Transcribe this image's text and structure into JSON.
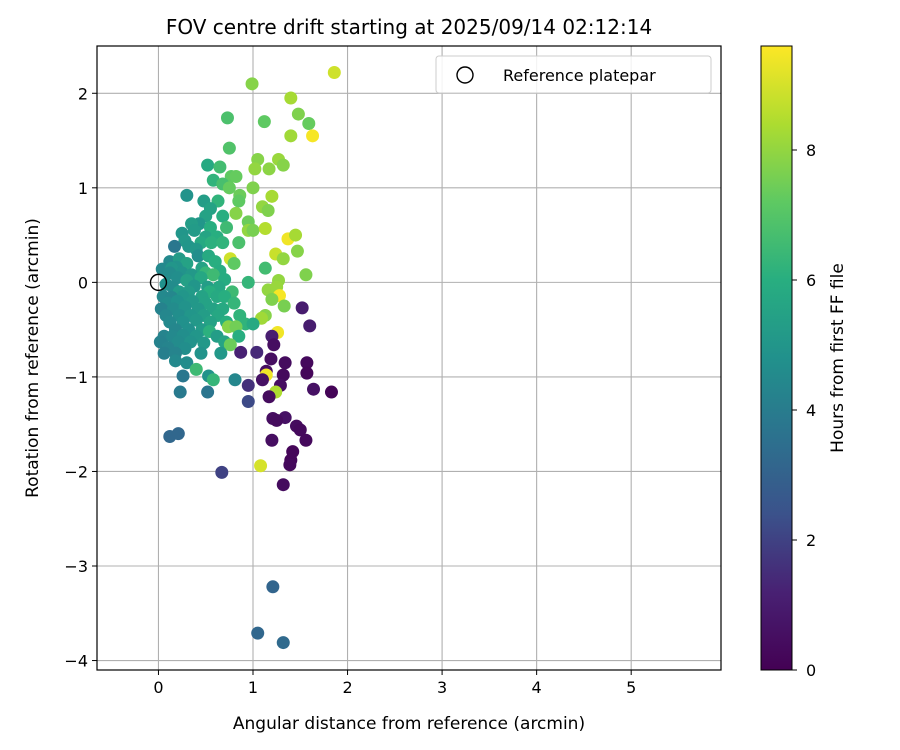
{
  "chart_data": {
    "type": "scatter",
    "title": "FOV centre drift starting at 2025/09/14 02:12:14",
    "xlabel": "Angular distance from reference (arcmin)",
    "ylabel": "Rotation from reference (arcmin)",
    "xlim": [
      -0.65,
      5.95
    ],
    "ylim": [
      -4.1,
      2.5
    ],
    "xticks": [
      "0",
      "1",
      "2",
      "3",
      "4",
      "5"
    ],
    "yticks": [
      "−4",
      "−3",
      "−2",
      "−1",
      "0",
      "1",
      "2"
    ],
    "grid": true,
    "legend": {
      "position": "top-right",
      "entries": [
        "Reference platepar"
      ]
    },
    "reference_point": {
      "x": 0,
      "y": 0
    },
    "colorbar": {
      "label": "Hours from first FF file",
      "range": [
        0,
        9.6
      ],
      "ticks": [
        "0",
        "2",
        "4",
        "6",
        "8"
      ],
      "colormap": "viridis"
    },
    "points": [
      {
        "x": 1.86,
        "y": 2.22,
        "c": 8.9
      },
      {
        "x": 0.99,
        "y": 2.1,
        "c": 7.8
      },
      {
        "x": 1.4,
        "y": 1.95,
        "c": 8.3
      },
      {
        "x": 1.48,
        "y": 1.78,
        "c": 7.7
      },
      {
        "x": 0.73,
        "y": 1.74,
        "c": 6.8
      },
      {
        "x": 1.12,
        "y": 1.7,
        "c": 7.2
      },
      {
        "x": 1.59,
        "y": 1.68,
        "c": 7.3
      },
      {
        "x": 1.63,
        "y": 1.55,
        "c": 9.5
      },
      {
        "x": 1.4,
        "y": 1.55,
        "c": 8.2
      },
      {
        "x": 0.75,
        "y": 1.42,
        "c": 6.9
      },
      {
        "x": 1.05,
        "y": 1.3,
        "c": 7.8
      },
      {
        "x": 1.27,
        "y": 1.3,
        "c": 8.1
      },
      {
        "x": 0.52,
        "y": 1.24,
        "c": 5.8
      },
      {
        "x": 0.65,
        "y": 1.22,
        "c": 6.6
      },
      {
        "x": 1.32,
        "y": 1.24,
        "c": 7.8
      },
      {
        "x": 1.02,
        "y": 1.2,
        "c": 8.0
      },
      {
        "x": 1.17,
        "y": 1.2,
        "c": 7.9
      },
      {
        "x": 0.58,
        "y": 1.08,
        "c": 6.2
      },
      {
        "x": 0.77,
        "y": 1.12,
        "c": 7.2
      },
      {
        "x": 0.82,
        "y": 1.12,
        "c": 7.3
      },
      {
        "x": 0.68,
        "y": 1.04,
        "c": 6.7
      },
      {
        "x": 1.0,
        "y": 1.0,
        "c": 7.7
      },
      {
        "x": 0.75,
        "y": 1.0,
        "c": 7.3
      },
      {
        "x": 0.3,
        "y": 0.92,
        "c": 4.9
      },
      {
        "x": 0.86,
        "y": 0.92,
        "c": 7.4
      },
      {
        "x": 1.2,
        "y": 0.91,
        "c": 8.3
      },
      {
        "x": 0.48,
        "y": 0.86,
        "c": 5.3
      },
      {
        "x": 0.63,
        "y": 0.86,
        "c": 6.2
      },
      {
        "x": 1.1,
        "y": 0.8,
        "c": 8.0
      },
      {
        "x": 0.85,
        "y": 0.86,
        "c": 7.2
      },
      {
        "x": 0.55,
        "y": 0.78,
        "c": 5.5
      },
      {
        "x": 1.16,
        "y": 0.76,
        "c": 7.7
      },
      {
        "x": 0.82,
        "y": 0.73,
        "c": 7.8
      },
      {
        "x": 0.5,
        "y": 0.7,
        "c": 5.5
      },
      {
        "x": 0.68,
        "y": 0.7,
        "c": 6.0
      },
      {
        "x": 0.43,
        "y": 0.62,
        "c": 5.0
      },
      {
        "x": 0.35,
        "y": 0.62,
        "c": 5.3
      },
      {
        "x": 0.95,
        "y": 0.64,
        "c": 7.4
      },
      {
        "x": 0.55,
        "y": 0.58,
        "c": 6.0
      },
      {
        "x": 0.72,
        "y": 0.58,
        "c": 6.5
      },
      {
        "x": 0.38,
        "y": 0.55,
        "c": 5.2
      },
      {
        "x": 0.25,
        "y": 0.52,
        "c": 5.0
      },
      {
        "x": 0.95,
        "y": 0.55,
        "c": 8.0
      },
      {
        "x": 1.0,
        "y": 0.55,
        "c": 7.6
      },
      {
        "x": 1.13,
        "y": 0.57,
        "c": 8.5
      },
      {
        "x": 1.37,
        "y": 0.46,
        "c": 9.4
      },
      {
        "x": 1.45,
        "y": 0.5,
        "c": 8.3
      },
      {
        "x": 0.5,
        "y": 0.48,
        "c": 5.6
      },
      {
        "x": 0.62,
        "y": 0.48,
        "c": 6.0
      },
      {
        "x": 0.28,
        "y": 0.44,
        "c": 5.1
      },
      {
        "x": 0.45,
        "y": 0.42,
        "c": 5.8
      },
      {
        "x": 0.56,
        "y": 0.42,
        "c": 6.1
      },
      {
        "x": 0.68,
        "y": 0.42,
        "c": 6.2
      },
      {
        "x": 0.85,
        "y": 0.42,
        "c": 6.8
      },
      {
        "x": 0.17,
        "y": 0.38,
        "c": 3.8
      },
      {
        "x": 0.32,
        "y": 0.38,
        "c": 5.0
      },
      {
        "x": 0.4,
        "y": 0.35,
        "c": 5.1
      },
      {
        "x": 1.47,
        "y": 0.33,
        "c": 7.8
      },
      {
        "x": 1.24,
        "y": 0.3,
        "c": 8.8
      },
      {
        "x": 1.32,
        "y": 0.25,
        "c": 8.0
      },
      {
        "x": 0.42,
        "y": 0.28,
        "c": 4.7
      },
      {
        "x": 0.53,
        "y": 0.28,
        "c": 5.8
      },
      {
        "x": 0.76,
        "y": 0.25,
        "c": 8.9
      },
      {
        "x": 0.12,
        "y": 0.22,
        "c": 4.5
      },
      {
        "x": 0.22,
        "y": 0.25,
        "c": 5.2
      },
      {
        "x": 0.3,
        "y": 0.2,
        "c": 5.5
      },
      {
        "x": 0.6,
        "y": 0.22,
        "c": 6.0
      },
      {
        "x": 0.8,
        "y": 0.2,
        "c": 7.2
      },
      {
        "x": 0.19,
        "y": 0.16,
        "c": 4.9
      },
      {
        "x": 0.04,
        "y": 0.14,
        "c": 4.5
      },
      {
        "x": 0.14,
        "y": 0.15,
        "c": 5.0
      },
      {
        "x": 0.46,
        "y": 0.15,
        "c": 5.5
      },
      {
        "x": 0.65,
        "y": 0.12,
        "c": 5.9
      },
      {
        "x": 1.13,
        "y": 0.15,
        "c": 6.6
      },
      {
        "x": 0.12,
        "y": 0.1,
        "c": 4.6
      },
      {
        "x": 0.25,
        "y": 0.1,
        "c": 4.9
      },
      {
        "x": 0.35,
        "y": 0.08,
        "c": 5.1
      },
      {
        "x": 0.5,
        "y": 0.1,
        "c": 6.3
      },
      {
        "x": 0.58,
        "y": 0.08,
        "c": 6.5
      },
      {
        "x": 1.56,
        "y": 0.08,
        "c": 7.7
      },
      {
        "x": 0.2,
        "y": 0.05,
        "c": 4.7
      },
      {
        "x": 0.3,
        "y": 0.02,
        "c": 5.4
      },
      {
        "x": 0.45,
        "y": 0.05,
        "c": 5.7
      },
      {
        "x": 0.7,
        "y": 0.03,
        "c": 5.9
      },
      {
        "x": 0.95,
        "y": 0.0,
        "c": 6.3
      },
      {
        "x": 1.27,
        "y": 0.02,
        "c": 8.0
      },
      {
        "x": 0.08,
        "y": -0.02,
        "c": 4.8
      },
      {
        "x": 0.15,
        "y": -0.05,
        "c": 4.6
      },
      {
        "x": 0.38,
        "y": -0.04,
        "c": 5.0
      },
      {
        "x": 0.52,
        "y": -0.05,
        "c": 5.3
      },
      {
        "x": 0.64,
        "y": -0.05,
        "c": 5.7
      },
      {
        "x": 1.16,
        "y": -0.08,
        "c": 8.0
      },
      {
        "x": 1.25,
        "y": -0.05,
        "c": 8.1
      },
      {
        "x": 0.22,
        "y": -0.1,
        "c": 5.2
      },
      {
        "x": 0.32,
        "y": -0.1,
        "c": 5.2
      },
      {
        "x": 0.54,
        "y": -0.1,
        "c": 6.0
      },
      {
        "x": 0.78,
        "y": -0.1,
        "c": 6.5
      },
      {
        "x": 1.28,
        "y": -0.14,
        "c": 9.5
      },
      {
        "x": 0.05,
        "y": -0.15,
        "c": 4.5
      },
      {
        "x": 0.14,
        "y": -0.16,
        "c": 4.4
      },
      {
        "x": 0.26,
        "y": -0.15,
        "c": 5.0
      },
      {
        "x": 0.46,
        "y": -0.15,
        "c": 5.5
      },
      {
        "x": 0.62,
        "y": -0.15,
        "c": 5.8
      },
      {
        "x": 0.7,
        "y": -0.15,
        "c": 6.0
      },
      {
        "x": 1.2,
        "y": -0.18,
        "c": 7.7
      },
      {
        "x": 0.1,
        "y": -0.22,
        "c": 4.6
      },
      {
        "x": 0.2,
        "y": -0.2,
        "c": 4.8
      },
      {
        "x": 0.36,
        "y": -0.2,
        "c": 5.1
      },
      {
        "x": 0.5,
        "y": -0.22,
        "c": 5.5
      },
      {
        "x": 0.8,
        "y": -0.22,
        "c": 6.3
      },
      {
        "x": 1.33,
        "y": -0.25,
        "c": 7.6
      },
      {
        "x": 0.03,
        "y": -0.28,
        "c": 4.2
      },
      {
        "x": 0.16,
        "y": -0.28,
        "c": 4.6
      },
      {
        "x": 0.28,
        "y": -0.26,
        "c": 4.9
      },
      {
        "x": 0.42,
        "y": -0.28,
        "c": 5.1
      },
      {
        "x": 0.58,
        "y": -0.28,
        "c": 5.5
      },
      {
        "x": 0.68,
        "y": -0.28,
        "c": 5.8
      },
      {
        "x": 1.52,
        "y": -0.27,
        "c": 1.0
      },
      {
        "x": 0.08,
        "y": -0.35,
        "c": 4.4
      },
      {
        "x": 0.22,
        "y": -0.35,
        "c": 4.7
      },
      {
        "x": 0.34,
        "y": -0.35,
        "c": 5.0
      },
      {
        "x": 0.48,
        "y": -0.35,
        "c": 5.3
      },
      {
        "x": 0.63,
        "y": -0.35,
        "c": 5.7
      },
      {
        "x": 0.86,
        "y": -0.35,
        "c": 6.2
      },
      {
        "x": 1.13,
        "y": -0.35,
        "c": 7.8
      },
      {
        "x": 1.09,
        "y": -0.38,
        "c": 8.2
      },
      {
        "x": 0.12,
        "y": -0.42,
        "c": 4.5
      },
      {
        "x": 0.26,
        "y": -0.42,
        "c": 4.8
      },
      {
        "x": 0.4,
        "y": -0.4,
        "c": 5.1
      },
      {
        "x": 0.55,
        "y": -0.42,
        "c": 5.5
      },
      {
        "x": 0.72,
        "y": -0.42,
        "c": 6.0
      },
      {
        "x": 0.92,
        "y": -0.44,
        "c": 6.2
      },
      {
        "x": 1.0,
        "y": -0.44,
        "c": 5.8
      },
      {
        "x": 1.6,
        "y": -0.46,
        "c": 1.0
      },
      {
        "x": 0.74,
        "y": -0.47,
        "c": 7.8
      },
      {
        "x": 0.82,
        "y": -0.47,
        "c": 7.5
      },
      {
        "x": 0.18,
        "y": -0.5,
        "c": 4.4
      },
      {
        "x": 0.32,
        "y": -0.5,
        "c": 4.8
      },
      {
        "x": 0.46,
        "y": -0.5,
        "c": 5.2
      },
      {
        "x": 0.54,
        "y": -0.52,
        "c": 6.1
      },
      {
        "x": 1.26,
        "y": -0.53,
        "c": 9.4
      },
      {
        "x": 0.06,
        "y": -0.57,
        "c": 4.3
      },
      {
        "x": 0.15,
        "y": -0.57,
        "c": 4.5
      },
      {
        "x": 0.26,
        "y": -0.56,
        "c": 4.7
      },
      {
        "x": 0.4,
        "y": -0.57,
        "c": 5.0
      },
      {
        "x": 0.62,
        "y": -0.57,
        "c": 5.3
      },
      {
        "x": 0.85,
        "y": -0.57,
        "c": 6.0
      },
      {
        "x": 1.2,
        "y": -0.57,
        "c": 1.1
      },
      {
        "x": 0.02,
        "y": -0.63,
        "c": 4.2
      },
      {
        "x": 0.21,
        "y": -0.63,
        "c": 4.6
      },
      {
        "x": 0.34,
        "y": -0.63,
        "c": 4.9
      },
      {
        "x": 0.48,
        "y": -0.64,
        "c": 5.1
      },
      {
        "x": 0.7,
        "y": -0.63,
        "c": 5.6
      },
      {
        "x": 1.22,
        "y": -0.66,
        "c": 0.5
      },
      {
        "x": 0.1,
        "y": -0.69,
        "c": 4.3
      },
      {
        "x": 0.28,
        "y": -0.7,
        "c": 4.7
      },
      {
        "x": 0.76,
        "y": -0.66,
        "c": 7.4
      },
      {
        "x": 0.87,
        "y": -0.74,
        "c": 1.2
      },
      {
        "x": 1.04,
        "y": -0.74,
        "c": 1.4
      },
      {
        "x": 0.06,
        "y": -0.75,
        "c": 4.1
      },
      {
        "x": 0.18,
        "y": -0.75,
        "c": 4.3
      },
      {
        "x": 0.45,
        "y": -0.75,
        "c": 4.9
      },
      {
        "x": 0.66,
        "y": -0.75,
        "c": 5.1
      },
      {
        "x": 1.19,
        "y": -0.81,
        "c": 0.5
      },
      {
        "x": 0.18,
        "y": -0.83,
        "c": 4.5
      },
      {
        "x": 0.3,
        "y": -0.85,
        "c": 4.6
      },
      {
        "x": 1.34,
        "y": -0.85,
        "c": 0.4
      },
      {
        "x": 1.57,
        "y": -0.85,
        "c": 0.3
      },
      {
        "x": 0.4,
        "y": -0.92,
        "c": 6.5
      },
      {
        "x": 1.14,
        "y": -0.94,
        "c": 0.5
      },
      {
        "x": 1.57,
        "y": -0.96,
        "c": 0.2
      },
      {
        "x": 0.26,
        "y": -0.99,
        "c": 3.8
      },
      {
        "x": 0.53,
        "y": -0.99,
        "c": 4.9
      },
      {
        "x": 1.14,
        "y": -0.98,
        "c": 9.4
      },
      {
        "x": 1.32,
        "y": -0.98,
        "c": 0.3
      },
      {
        "x": 0.81,
        "y": -1.03,
        "c": 4.4
      },
      {
        "x": 0.58,
        "y": -1.03,
        "c": 6.3
      },
      {
        "x": 1.1,
        "y": -1.03,
        "c": 0.6
      },
      {
        "x": 0.95,
        "y": -1.09,
        "c": 1.6
      },
      {
        "x": 1.29,
        "y": -1.09,
        "c": 0.5
      },
      {
        "x": 1.64,
        "y": -1.13,
        "c": 0.6
      },
      {
        "x": 0.23,
        "y": -1.16,
        "c": 3.9
      },
      {
        "x": 0.52,
        "y": -1.16,
        "c": 3.7
      },
      {
        "x": 1.24,
        "y": -1.16,
        "c": 8.4
      },
      {
        "x": 1.83,
        "y": -1.16,
        "c": 0.1
      },
      {
        "x": 1.17,
        "y": -1.21,
        "c": 0.4
      },
      {
        "x": 0.95,
        "y": -1.26,
        "c": 2.2
      },
      {
        "x": 1.21,
        "y": -1.44,
        "c": 0.5
      },
      {
        "x": 1.34,
        "y": -1.43,
        "c": 0.6
      },
      {
        "x": 1.25,
        "y": -1.46,
        "c": 0.4
      },
      {
        "x": 1.46,
        "y": -1.52,
        "c": 0.4
      },
      {
        "x": 1.5,
        "y": -1.56,
        "c": 0.3
      },
      {
        "x": 0.12,
        "y": -1.63,
        "c": 3.2
      },
      {
        "x": 0.21,
        "y": -1.6,
        "c": 3.2
      },
      {
        "x": 1.2,
        "y": -1.67,
        "c": 0.5
      },
      {
        "x": 1.56,
        "y": -1.67,
        "c": 0.3
      },
      {
        "x": 1.42,
        "y": -1.79,
        "c": 0.2
      },
      {
        "x": 1.4,
        "y": -1.88,
        "c": 0.2
      },
      {
        "x": 1.39,
        "y": -1.93,
        "c": 0.3
      },
      {
        "x": 1.08,
        "y": -1.94,
        "c": 9.0
      },
      {
        "x": 0.67,
        "y": -2.01,
        "c": 2.0
      },
      {
        "x": 1.32,
        "y": -2.14,
        "c": 0.4
      },
      {
        "x": 1.21,
        "y": -3.22,
        "c": 3.1
      },
      {
        "x": 1.05,
        "y": -3.71,
        "c": 3.2
      },
      {
        "x": 1.32,
        "y": -3.81,
        "c": 3.3
      }
    ]
  }
}
